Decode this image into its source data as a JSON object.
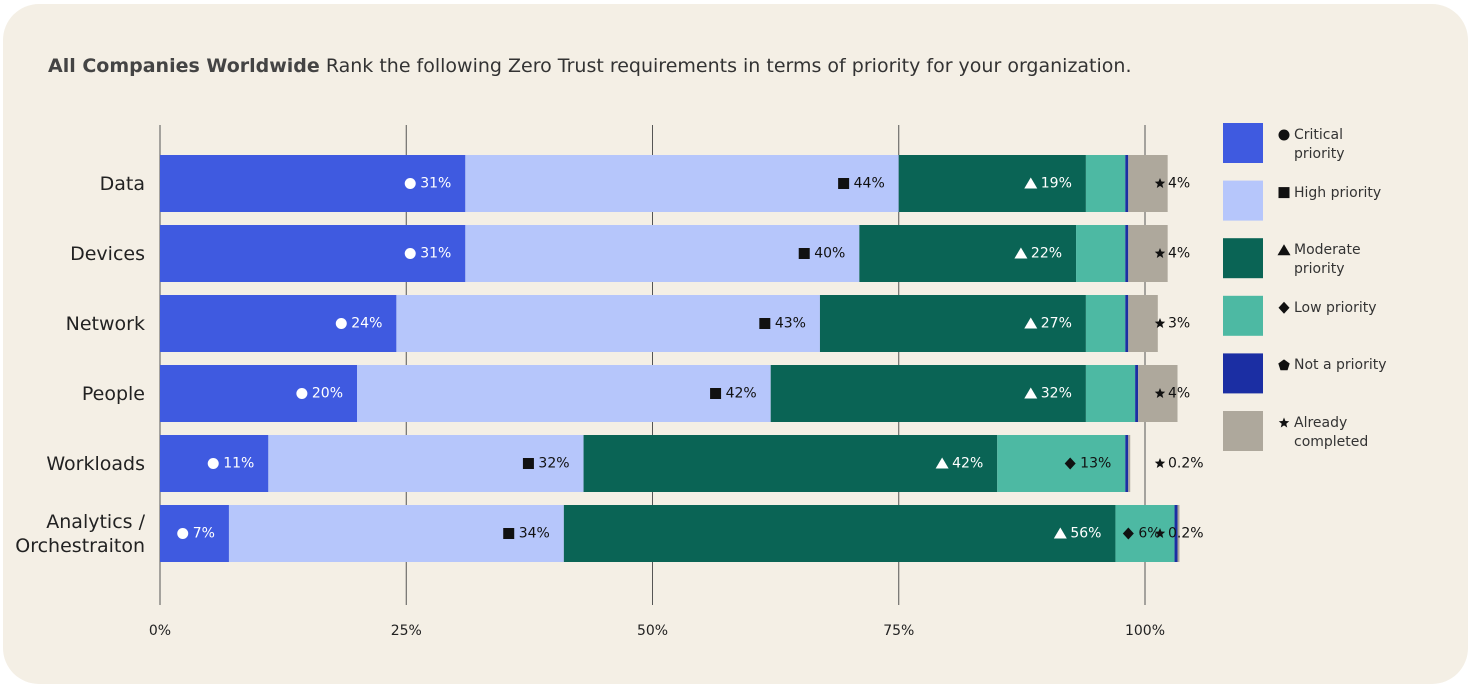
{
  "chart_data": {
    "type": "stacked-bar-horizontal",
    "title": "All Companies Worldwide",
    "subtitle": "Rank the following Zero Trust requirements in terms of priority for your organization.",
    "categories": [
      "Data",
      "Devices",
      "Network",
      "People",
      "Workloads",
      "Analytics / Orchestraiton"
    ],
    "series": [
      {
        "name": "Critical priority",
        "color": "#3f5ae0",
        "values": [
          31,
          31,
          24,
          20,
          11,
          7
        ],
        "value_labels": [
          "31%",
          "31%",
          "24%",
          "20%",
          "11%",
          "7%"
        ]
      },
      {
        "name": "High priority",
        "color": "#b6c6fb",
        "values": [
          44,
          40,
          43,
          42,
          32,
          34
        ],
        "value_labels": [
          "44%",
          "40%",
          "43%",
          "42%",
          "32%",
          "34%"
        ]
      },
      {
        "name": "Moderate priority",
        "color": "#0a6455",
        "values": [
          19,
          22,
          27,
          32,
          42,
          56
        ],
        "value_labels": [
          "19%",
          "22%",
          "27%",
          "32%",
          "42%",
          "56%"
        ]
      },
      {
        "name": "Low priority",
        "color": "#4db9a3",
        "values": [
          4,
          5,
          4,
          5,
          13,
          6
        ],
        "value_labels": [
          null,
          null,
          null,
          null,
          "13%",
          "6%"
        ]
      },
      {
        "name": "Not a priority",
        "color": "#1b2ea3",
        "values": [
          0.3,
          0.3,
          0.3,
          0.3,
          0.3,
          0.3
        ]
      },
      {
        "name": "Already completed",
        "color": "#aea89c",
        "values": [
          4,
          4,
          3,
          4,
          0.2,
          0.2
        ],
        "value_labels": [
          "4%",
          "4%",
          "3%",
          "4%",
          "0.2%",
          "0.2%"
        ]
      }
    ],
    "xlim": [
      0,
      100
    ],
    "xticks": [
      {
        "value": 0,
        "label": "0%"
      },
      {
        "value": 25,
        "label": "25%"
      },
      {
        "value": 50,
        "label": "50%"
      },
      {
        "value": 75,
        "label": "75%"
      },
      {
        "value": 100,
        "label": "100%"
      }
    ],
    "grid": true,
    "legend": "right"
  }
}
